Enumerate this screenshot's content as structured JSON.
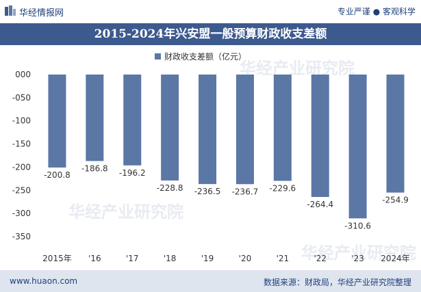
{
  "header": {
    "brand": "华经情报网",
    "slogan": "专业严谨 ● 客观科学"
  },
  "title": "2015-2024年兴安盟一般预算财政收支差额",
  "footer": {
    "url": "www.huaon.com",
    "source": "数据来源：财政局，华经产业研究院整理"
  },
  "watermark": "华经产业研究院",
  "colors": {
    "bar": "#5b77a6",
    "title_bg": "#3d5a8e",
    "footer_bg": "#dfe5ef",
    "brand": "#1f3f7a"
  },
  "chart_data": {
    "type": "bar",
    "categories": [
      "2015年",
      "'16",
      "'17",
      "'18",
      "'19",
      "'20",
      "'21",
      "'22",
      "'23",
      "2024年"
    ],
    "series": [
      {
        "name": "财政收支差额（亿元）",
        "values": [
          -200.8,
          -186.8,
          -196.2,
          -228.8,
          -236.5,
          -236.7,
          -229.6,
          -264.4,
          -310.6,
          -254.9
        ]
      }
    ],
    "value_labels": [
      "-200.8",
      "-186.8",
      "-196.2",
      "-228.8",
      "-236.5",
      "-236.7",
      "-229.6",
      "-264.4",
      "-310.6",
      "-254.9"
    ],
    "yticks": [
      "000",
      "-050",
      "-100",
      "-150",
      "-200",
      "-250",
      "-300",
      "-350"
    ],
    "ylim": [
      -350,
      0
    ],
    "ytick_step": 50,
    "legend_position": "top-center",
    "grid": false
  }
}
